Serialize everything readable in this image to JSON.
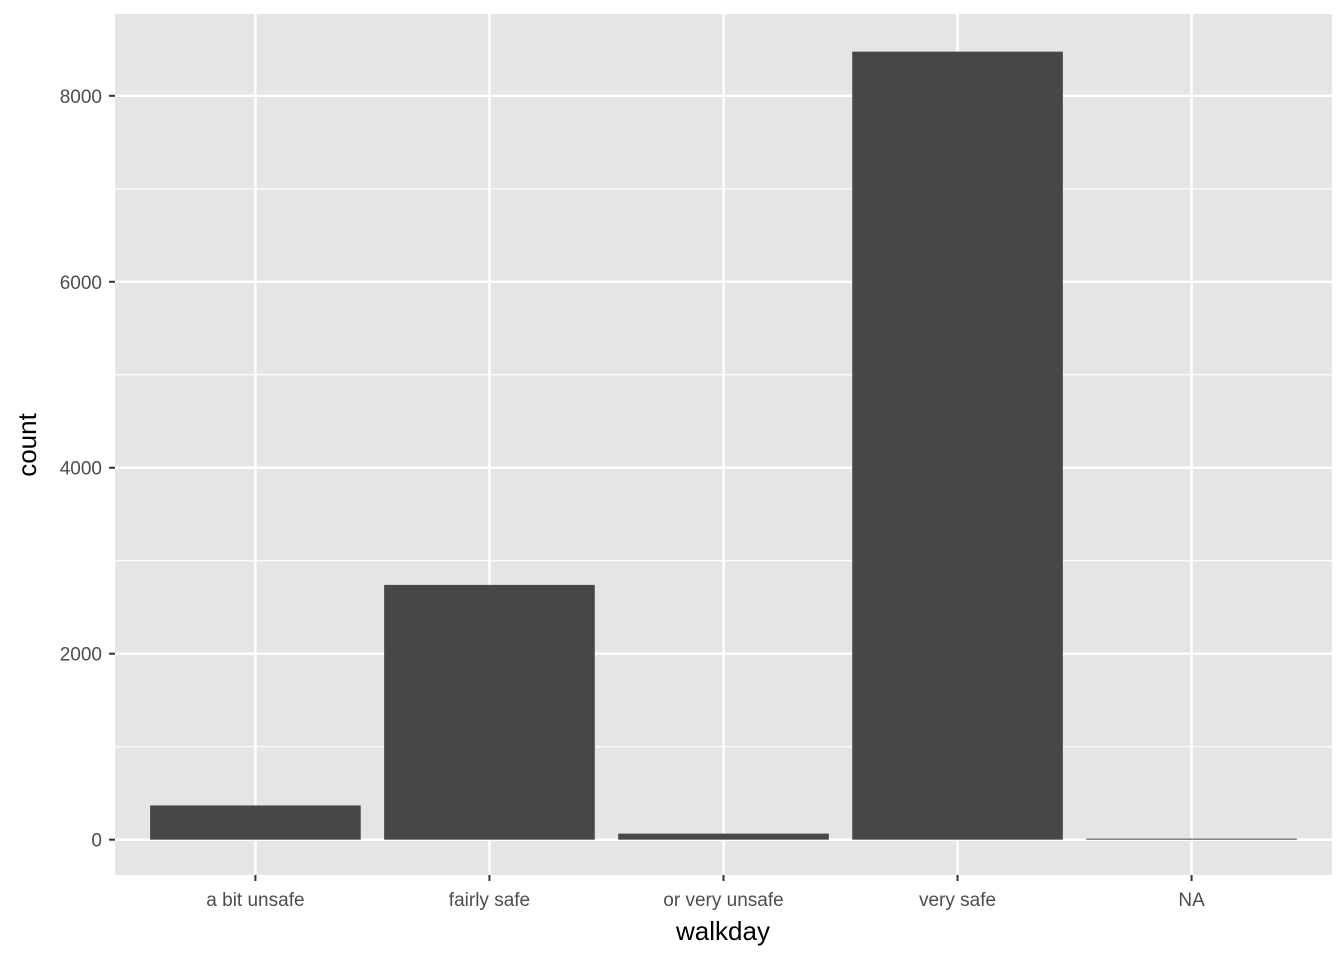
{
  "chart_data": {
    "type": "bar",
    "categories": [
      "a bit unsafe",
      "fairly safe",
      "or very unsafe",
      "very safe",
      "NA"
    ],
    "values": [
      368,
      2740,
      65,
      8475,
      11
    ],
    "title": "",
    "xlabel": "walkday",
    "ylabel": "count",
    "ylim": [
      -380,
      8880
    ],
    "yticks": [
      0,
      2000,
      4000,
      6000,
      8000
    ],
    "ytick_labels": [
      "0",
      "2000",
      "4000",
      "6000",
      "8000"
    ],
    "grid": true,
    "colors": {
      "bar": "#474747",
      "panel": "#e5e5e5",
      "grid": "#ffffff"
    }
  }
}
